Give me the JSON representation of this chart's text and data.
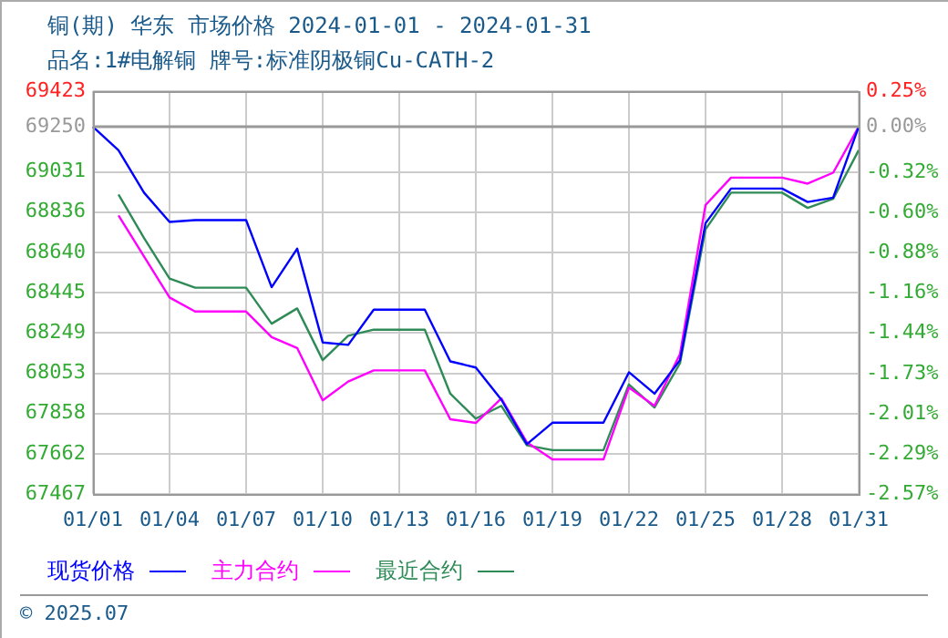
{
  "chart_data": {
    "type": "line",
    "title": "铜(期) 华东 市场价格 2024-01-01 - 2024-01-31",
    "subtitle": "品名:1#电解铜 牌号:标准阴极铜Cu-CATH-2",
    "categories": [
      "01/01",
      null,
      null,
      "01/04",
      null,
      null,
      "01/07",
      null,
      null,
      "01/10",
      null,
      null,
      "01/13",
      null,
      null,
      "01/16",
      null,
      null,
      "01/19",
      null,
      null,
      "01/22",
      null,
      null,
      "01/25",
      null,
      null,
      "01/28",
      null,
      null,
      "01/31"
    ],
    "series": [
      {
        "name": "现货价格",
        "color": "#0000ff",
        "values": [
          69250,
          69136,
          68930,
          68788,
          68797,
          68797,
          68797,
          68471,
          68658,
          68203,
          68191,
          68362,
          68362,
          68362,
          68111,
          68081,
          67925,
          67709,
          67813,
          67813,
          67813,
          68058,
          67954,
          68117,
          68782,
          68950,
          68950,
          68950,
          68885,
          68906,
          69250
        ]
      },
      {
        "name": "主力合约",
        "color": "#ff00ff",
        "values": [
          null,
          68820,
          68620,
          68421,
          68353,
          68353,
          68353,
          68229,
          68176,
          67922,
          68013,
          68067,
          68067,
          68067,
          67830,
          67812,
          67931,
          67718,
          67635,
          67635,
          67635,
          67984,
          67895,
          68146,
          68870,
          69003,
          69003,
          69003,
          68974,
          69027,
          69250
        ]
      },
      {
        "name": "最近合约",
        "color": "#2e8b57",
        "values": [
          null,
          68921,
          68710,
          68513,
          68469,
          68469,
          68469,
          68294,
          68368,
          68117,
          68235,
          68265,
          68265,
          68265,
          67954,
          67833,
          67895,
          67703,
          67680,
          67680,
          67680,
          67999,
          67887,
          68102,
          68752,
          68930,
          68930,
          68930,
          68856,
          68900,
          69136
        ]
      }
    ],
    "ylim": [
      67467,
      69423
    ],
    "yticks": [
      67467,
      67662,
      67858,
      68053,
      68249,
      68445,
      68640,
      68836,
      69031,
      69250,
      69423
    ],
    "y2lim": [
      -2.57,
      0.25
    ],
    "y2ticks": [
      {
        "value": -2.57,
        "label": "-2.57%"
      },
      {
        "value": -2.29,
        "label": "-2.29%"
      },
      {
        "value": -2.01,
        "label": "-2.01%"
      },
      {
        "value": -1.73,
        "label": "-1.73%"
      },
      {
        "value": -1.44,
        "label": "-1.44%"
      },
      {
        "value": -1.16,
        "label": "-1.16%"
      },
      {
        "value": -0.88,
        "label": "-0.88%"
      },
      {
        "value": -0.6,
        "label": "-0.60%"
      },
      {
        "value": -0.32,
        "label": "-0.32%"
      },
      {
        "value": 0,
        "label": "0.00%"
      },
      {
        "value": 0.25,
        "label": "0.25%"
      }
    ],
    "ref_lines": [
      {
        "axis": "y",
        "value": 69250,
        "color": "#999999"
      }
    ],
    "grid": true,
    "legend": "bottom",
    "marker": "none",
    "line_style": "solid",
    "annotations": [
      "© 2025.07"
    ]
  }
}
